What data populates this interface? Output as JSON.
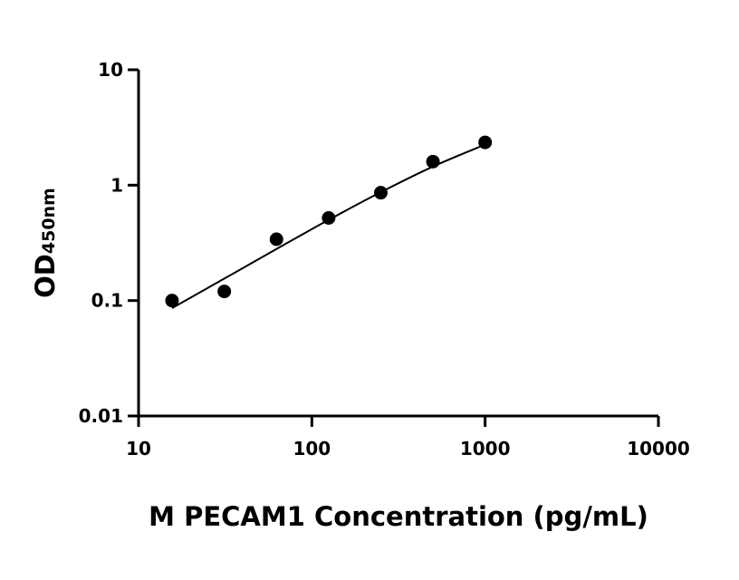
{
  "chart_data": {
    "type": "scatter",
    "x_scale": "log",
    "y_scale": "log",
    "xlim": [
      10,
      10000
    ],
    "ylim": [
      0.01,
      10
    ],
    "x_ticks": [
      10,
      100,
      1000,
      10000
    ],
    "x_tick_labels": [
      "10",
      "100",
      "1000",
      "10000"
    ],
    "y_ticks": [
      0.01,
      0.1,
      1,
      10
    ],
    "y_tick_labels": [
      "0.01",
      "0.1",
      "1",
      "10"
    ],
    "xlabel": "M PECAM1 Concentration (pg/mL)",
    "ylabel_main": "OD",
    "ylabel_sub": "450nm",
    "grid": false,
    "points": [
      {
        "x": 15.6,
        "y": 0.1
      },
      {
        "x": 31.25,
        "y": 0.12
      },
      {
        "x": 62.5,
        "y": 0.34
      },
      {
        "x": 125,
        "y": 0.52
      },
      {
        "x": 250,
        "y": 0.86
      },
      {
        "x": 500,
        "y": 1.6
      },
      {
        "x": 1000,
        "y": 2.35
      }
    ],
    "fit_curve": [
      {
        "x": 15.6,
        "y": 0.086
      },
      {
        "x": 31.25,
        "y": 0.155
      },
      {
        "x": 62.5,
        "y": 0.28
      },
      {
        "x": 125,
        "y": 0.5
      },
      {
        "x": 250,
        "y": 0.87
      },
      {
        "x": 500,
        "y": 1.45
      },
      {
        "x": 1000,
        "y": 2.25
      }
    ]
  }
}
